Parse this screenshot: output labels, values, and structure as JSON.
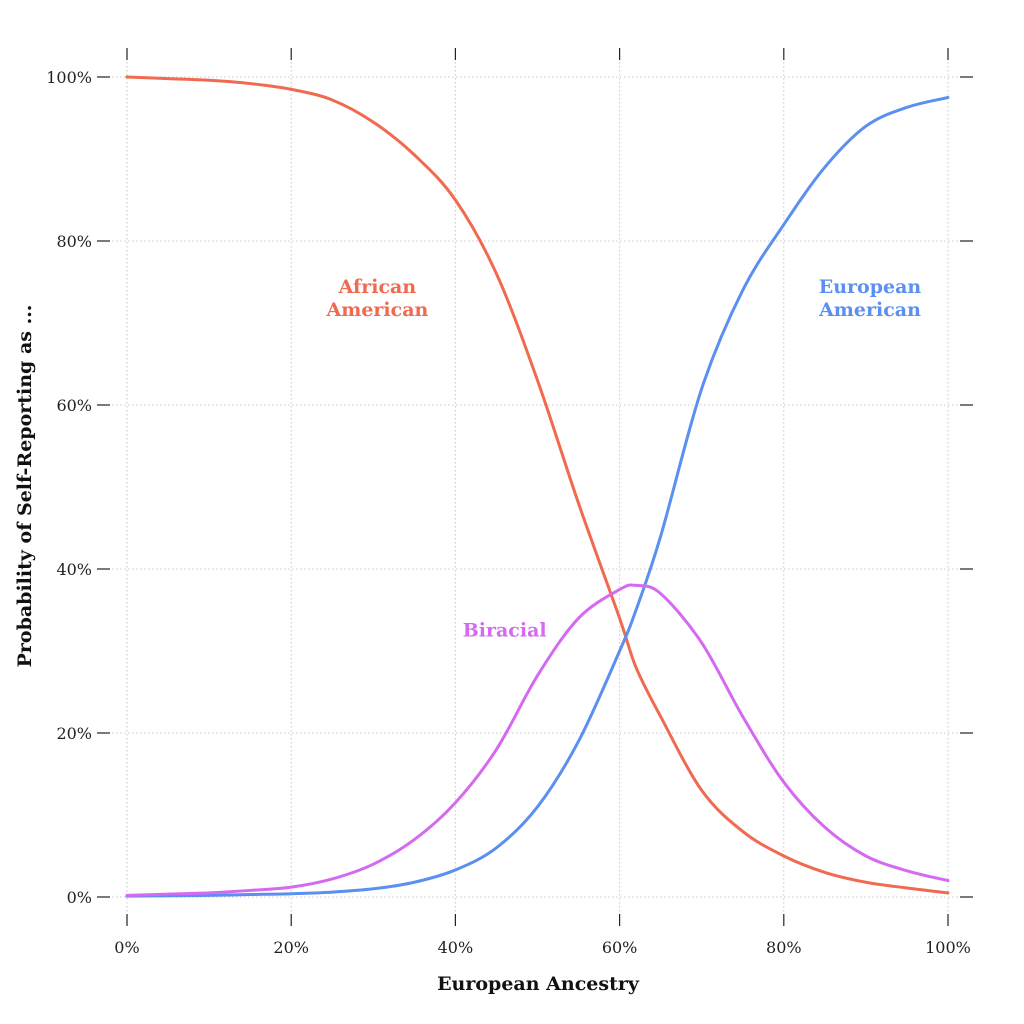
{
  "chart_data": {
    "type": "line",
    "title": "",
    "xlabel": "European Ancestry",
    "ylabel": "Probability of Self-Reporting as ...",
    "xlim": [
      0,
      100
    ],
    "ylim": [
      0,
      100
    ],
    "x_ticks": [
      0,
      20,
      40,
      60,
      80,
      100
    ],
    "y_ticks": [
      0,
      20,
      40,
      60,
      80,
      100
    ],
    "x_tick_labels": [
      "0%",
      "20%",
      "40%",
      "60%",
      "80%",
      "100%"
    ],
    "y_tick_labels": [
      "0%",
      "20%",
      "40%",
      "60%",
      "80%",
      "100%"
    ],
    "grid": true,
    "legend": "none (direct labels)",
    "series": [
      {
        "name": "African American",
        "label_lines": [
          "African",
          "American"
        ],
        "color": "#f06a50",
        "x": [
          0,
          5,
          10,
          15,
          20,
          25,
          30,
          35,
          40,
          45,
          50,
          55,
          60,
          62,
          65,
          70,
          75,
          80,
          85,
          90,
          95,
          100
        ],
        "y": [
          100,
          99.8,
          99.6,
          99.2,
          98.5,
          97.2,
          94.5,
          90.5,
          85,
          76,
          63,
          48,
          34,
          28,
          22,
          13,
          8,
          5,
          3,
          1.8,
          1.1,
          0.5
        ]
      },
      {
        "name": "European American",
        "label_lines": [
          "European",
          "American"
        ],
        "color": "#5b8ff0",
        "x": [
          0,
          5,
          10,
          15,
          20,
          25,
          30,
          35,
          40,
          45,
          50,
          55,
          60,
          62,
          65,
          70,
          75,
          80,
          85,
          90,
          95,
          100
        ],
        "y": [
          0.1,
          0.15,
          0.2,
          0.3,
          0.4,
          0.6,
          1,
          1.8,
          3.3,
          6,
          11,
          19,
          30,
          35,
          44,
          62,
          74,
          82,
          89,
          94,
          96.3,
          97.5
        ]
      },
      {
        "name": "Biracial",
        "label_lines": [
          "Biracial"
        ],
        "color": "#d46af0",
        "x": [
          0,
          5,
          10,
          15,
          20,
          25,
          30,
          35,
          40,
          45,
          50,
          55,
          60,
          62,
          65,
          70,
          75,
          80,
          85,
          90,
          95,
          100
        ],
        "y": [
          0.2,
          0.35,
          0.5,
          0.8,
          1.2,
          2.2,
          4,
          7,
          11.5,
          18,
          27,
          34,
          37.5,
          38,
          37,
          31,
          22,
          14,
          8.5,
          5,
          3.2,
          2
        ]
      }
    ],
    "label_positions": {
      "African American": [
        30.5,
        73
      ],
      "European American": [
        90.5,
        73
      ],
      "Biracial": [
        46,
        32.5
      ]
    }
  }
}
